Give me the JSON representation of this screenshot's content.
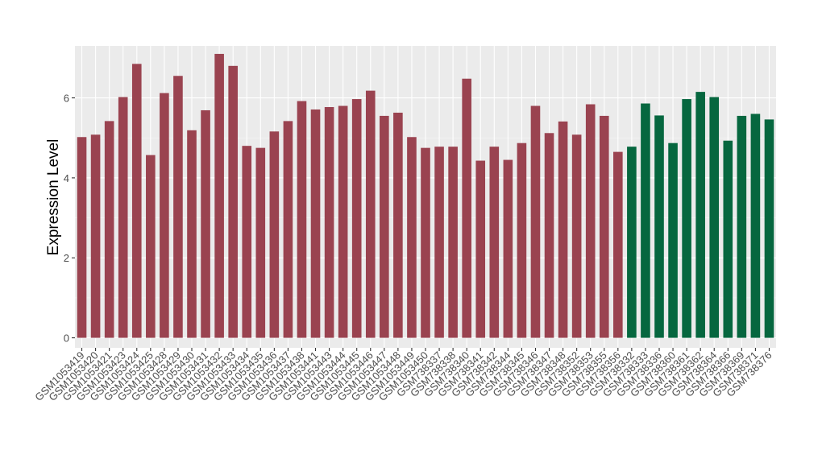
{
  "chart_data": {
    "type": "bar",
    "title": "",
    "xlabel": "",
    "ylabel": "Expression Level",
    "ylim": [
      -0.25,
      7.3
    ],
    "yticks": [
      0,
      2,
      4,
      6
    ],
    "grid": true,
    "colors": {
      "group1": "#9a4350",
      "group2": "#06673f",
      "panel_bg": "#ebebeb",
      "grid_major": "#ffffff",
      "grid_minor": "#f4f4f4"
    },
    "categories": [
      "GSM1053419",
      "GSM1053420",
      "GSM1053421",
      "GSM1053423",
      "GSM1053424",
      "GSM1053425",
      "GSM1053428",
      "GSM1053429",
      "GSM1053430",
      "GSM1053431",
      "GSM1053432",
      "GSM1053433",
      "GSM1053434",
      "GSM1053435",
      "GSM1053436",
      "GSM1053437",
      "GSM1053438",
      "GSM1053441",
      "GSM1053443",
      "GSM1053444",
      "GSM1053445",
      "GSM1053446",
      "GSM1053447",
      "GSM1053448",
      "GSM1053449",
      "GSM1053450",
      "GSM738337",
      "GSM738338",
      "GSM738340",
      "GSM738341",
      "GSM738342",
      "GSM738344",
      "GSM738345",
      "GSM738346",
      "GSM738347",
      "GSM738348",
      "GSM738352",
      "GSM738353",
      "GSM738355",
      "GSM738356",
      "GSM738332",
      "GSM738333",
      "GSM738336",
      "GSM738360",
      "GSM738361",
      "GSM738362",
      "GSM738364",
      "GSM738366",
      "GSM738369",
      "GSM738371",
      "GSM738376"
    ],
    "values": [
      5.02,
      5.08,
      5.42,
      6.02,
      6.85,
      4.57,
      6.12,
      6.55,
      5.19,
      5.69,
      7.1,
      6.8,
      4.8,
      4.75,
      5.16,
      5.42,
      5.92,
      5.71,
      5.77,
      5.8,
      5.97,
      6.18,
      5.55,
      5.63,
      5.02,
      4.75,
      4.78,
      4.78,
      6.48,
      4.43,
      4.78,
      4.45,
      4.87,
      5.8,
      5.12,
      5.41,
      5.08,
      5.84,
      5.55,
      4.65,
      4.78,
      5.86,
      5.56,
      4.87,
      5.97,
      6.15,
      6.02,
      4.93,
      5.55,
      5.6,
      5.46
    ],
    "groups": [
      1,
      1,
      1,
      1,
      1,
      1,
      1,
      1,
      1,
      1,
      1,
      1,
      1,
      1,
      1,
      1,
      1,
      1,
      1,
      1,
      1,
      1,
      1,
      1,
      1,
      1,
      1,
      1,
      1,
      1,
      1,
      1,
      1,
      1,
      1,
      1,
      1,
      1,
      1,
      1,
      2,
      2,
      2,
      2,
      2,
      2,
      2,
      2,
      2,
      2,
      2
    ]
  }
}
